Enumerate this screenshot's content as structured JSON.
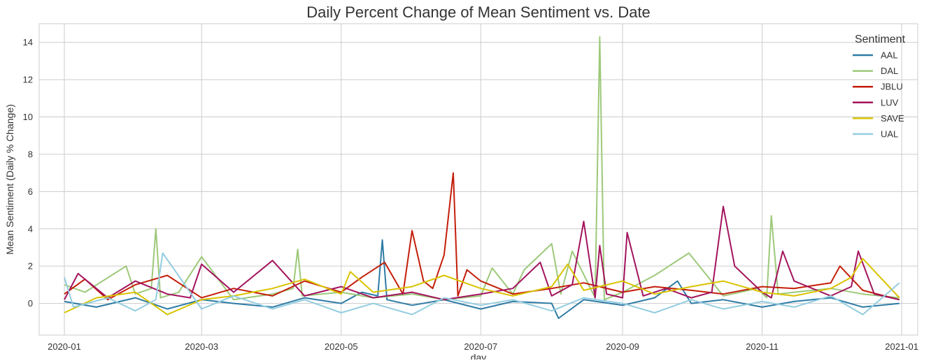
{
  "chart_data": {
    "type": "line",
    "title": "Daily Percent Change of Mean Sentiment vs. Date",
    "xlabel": "day",
    "ylabel": "Mean Sentiment (Daily % Change)",
    "x_range": [
      "2019-12-21",
      "2021-01-08"
    ],
    "ylim": [
      -1.7,
      15.0
    ],
    "x_ticks": [
      {
        "date": "2020-01-01",
        "label": "2020-01"
      },
      {
        "date": "2020-03-01",
        "label": "2020-03"
      },
      {
        "date": "2020-05-01",
        "label": "2020-05"
      },
      {
        "date": "2020-07-01",
        "label": "2020-07"
      },
      {
        "date": "2020-09-01",
        "label": "2020-09"
      },
      {
        "date": "2020-11-01",
        "label": "2020-11"
      },
      {
        "date": "2021-01-01",
        "label": "2021-01"
      }
    ],
    "y_ticks": [
      0,
      2,
      4,
      6,
      8,
      10,
      12,
      14
    ],
    "grid": true,
    "legend": {
      "title": "Sentiment",
      "placement": "top-right"
    },
    "series": [
      {
        "name": "AAL",
        "color": "#2e7ba5",
        "x": [
          "2020-01-01",
          "2020-01-15",
          "2020-02-01",
          "2020-02-15",
          "2020-03-01",
          "2020-03-15",
          "2020-04-01",
          "2020-04-15",
          "2020-05-01",
          "2020-05-10",
          "2020-05-17",
          "2020-05-19",
          "2020-05-21",
          "2020-06-01",
          "2020-06-15",
          "2020-07-01",
          "2020-07-15",
          "2020-08-01",
          "2020-08-04",
          "2020-08-15",
          "2020-09-01",
          "2020-09-15",
          "2020-09-25",
          "2020-10-01",
          "2020-10-15",
          "2020-11-01",
          "2020-11-15",
          "2020-12-01",
          "2020-12-15",
          "2020-12-31"
        ],
        "values": [
          0.1,
          -0.2,
          0.3,
          -0.3,
          0.2,
          0.0,
          -0.2,
          0.3,
          0.0,
          0.6,
          0.4,
          3.4,
          0.2,
          -0.1,
          0.2,
          -0.3,
          0.1,
          0.0,
          -0.8,
          0.2,
          -0.1,
          0.3,
          1.2,
          0.0,
          0.2,
          -0.2,
          0.1,
          0.3,
          -0.2,
          0.0
        ]
      },
      {
        "name": "DAL",
        "color": "#9dc97a",
        "x": [
          "2020-01-01",
          "2020-01-10",
          "2020-01-28",
          "2020-02-01",
          "2020-02-08",
          "2020-02-10",
          "2020-02-12",
          "2020-02-20",
          "2020-03-01",
          "2020-03-15",
          "2020-04-01",
          "2020-04-10",
          "2020-04-12",
          "2020-04-14",
          "2020-05-01",
          "2020-05-15",
          "2020-06-01",
          "2020-06-15",
          "2020-07-01",
          "2020-07-06",
          "2020-07-15",
          "2020-07-20",
          "2020-08-01",
          "2020-08-05",
          "2020-08-10",
          "2020-08-20",
          "2020-08-22",
          "2020-08-24",
          "2020-09-01",
          "2020-09-15",
          "2020-09-30",
          "2020-10-15",
          "2020-10-30",
          "2020-11-03",
          "2020-11-05",
          "2020-11-08",
          "2020-11-15",
          "2020-12-01",
          "2020-12-15",
          "2020-12-31"
        ],
        "values": [
          1.0,
          0.6,
          2.0,
          0.5,
          0.8,
          4.0,
          0.3,
          0.6,
          2.5,
          0.2,
          0.5,
          0.8,
          2.9,
          0.4,
          0.6,
          0.3,
          0.5,
          0.2,
          0.4,
          1.9,
          0.5,
          1.8,
          3.2,
          0.5,
          2.8,
          0.3,
          14.3,
          0.2,
          0.6,
          1.5,
          2.7,
          0.4,
          0.8,
          0.3,
          4.7,
          0.5,
          0.6,
          0.8,
          0.5,
          0.3
        ]
      },
      {
        "name": "JBLU",
        "color": "#c41e0a",
        "x": [
          "2020-01-01",
          "2020-01-10",
          "2020-01-20",
          "2020-02-01",
          "2020-02-15",
          "2020-03-01",
          "2020-03-15",
          "2020-04-01",
          "2020-04-15",
          "2020-05-01",
          "2020-05-10",
          "2020-05-20",
          "2020-05-28",
          "2020-06-01",
          "2020-06-06",
          "2020-06-10",
          "2020-06-15",
          "2020-06-19",
          "2020-06-21",
          "2020-06-25",
          "2020-07-01",
          "2020-07-15",
          "2020-08-01",
          "2020-08-15",
          "2020-09-01",
          "2020-09-15",
          "2020-10-01",
          "2020-10-15",
          "2020-11-01",
          "2020-11-15",
          "2020-12-01",
          "2020-12-05",
          "2020-12-15",
          "2020-12-31"
        ],
        "values": [
          0.5,
          1.3,
          0.2,
          1.0,
          1.5,
          0.3,
          0.8,
          0.4,
          1.2,
          0.6,
          1.4,
          2.2,
          0.5,
          3.9,
          1.2,
          0.8,
          2.6,
          7.0,
          0.4,
          1.8,
          1.2,
          0.5,
          0.8,
          1.1,
          0.6,
          0.9,
          0.7,
          0.5,
          0.9,
          0.8,
          1.1,
          2.0,
          0.7,
          0.2
        ]
      },
      {
        "name": "LUV",
        "color": "#a3135d",
        "x": [
          "2020-01-01",
          "2020-01-07",
          "2020-01-20",
          "2020-02-01",
          "2020-02-15",
          "2020-02-25",
          "2020-03-01",
          "2020-03-15",
          "2020-04-01",
          "2020-04-15",
          "2020-05-01",
          "2020-05-15",
          "2020-06-01",
          "2020-06-15",
          "2020-07-01",
          "2020-07-15",
          "2020-07-27",
          "2020-08-01",
          "2020-08-10",
          "2020-08-15",
          "2020-08-20",
          "2020-08-22",
          "2020-08-25",
          "2020-09-01",
          "2020-09-03",
          "2020-09-10",
          "2020-09-20",
          "2020-10-01",
          "2020-10-10",
          "2020-10-15",
          "2020-10-20",
          "2020-11-01",
          "2020-11-05",
          "2020-11-10",
          "2020-11-15",
          "2020-12-01",
          "2020-12-10",
          "2020-12-13",
          "2020-12-20",
          "2020-12-31"
        ],
        "values": [
          0.2,
          1.6,
          0.3,
          1.2,
          0.5,
          0.3,
          2.1,
          0.6,
          2.3,
          0.4,
          0.9,
          0.3,
          0.6,
          0.2,
          0.5,
          0.8,
          2.2,
          0.4,
          1.0,
          4.4,
          0.3,
          3.1,
          0.5,
          0.3,
          3.8,
          0.4,
          0.8,
          0.3,
          0.6,
          5.2,
          2.0,
          0.6,
          0.3,
          2.8,
          1.2,
          0.4,
          0.9,
          2.8,
          0.5,
          0.2
        ]
      },
      {
        "name": "SAVE",
        "color": "#d9c300",
        "x": [
          "2020-01-01",
          "2020-01-15",
          "2020-02-01",
          "2020-02-15",
          "2020-03-01",
          "2020-03-15",
          "2020-04-01",
          "2020-04-15",
          "2020-05-01",
          "2020-05-05",
          "2020-05-15",
          "2020-06-01",
          "2020-06-15",
          "2020-07-01",
          "2020-07-15",
          "2020-08-01",
          "2020-08-08",
          "2020-08-15",
          "2020-09-01",
          "2020-09-15",
          "2020-10-01",
          "2020-10-15",
          "2020-11-01",
          "2020-11-15",
          "2020-12-01",
          "2020-12-10",
          "2020-12-15",
          "2020-12-31"
        ],
        "values": [
          -0.5,
          0.3,
          0.6,
          -0.6,
          0.2,
          0.4,
          0.8,
          1.3,
          0.5,
          1.7,
          0.6,
          0.9,
          1.5,
          0.8,
          0.4,
          0.9,
          2.1,
          0.7,
          1.2,
          0.5,
          0.9,
          1.2,
          0.6,
          0.4,
          0.8,
          1.4,
          2.4,
          0.3
        ]
      },
      {
        "name": "UAL",
        "color": "#94cde0",
        "x": [
          "2020-01-01",
          "2020-01-05",
          "2020-01-20",
          "2020-02-01",
          "2020-02-10",
          "2020-02-13",
          "2020-02-17",
          "2020-03-01",
          "2020-03-15",
          "2020-04-01",
          "2020-04-15",
          "2020-05-01",
          "2020-05-15",
          "2020-06-01",
          "2020-06-15",
          "2020-07-01",
          "2020-07-15",
          "2020-08-01",
          "2020-08-15",
          "2020-09-01",
          "2020-09-15",
          "2020-10-01",
          "2020-10-15",
          "2020-11-01",
          "2020-11-15",
          "2020-12-01",
          "2020-12-15",
          "2020-12-31"
        ],
        "values": [
          1.4,
          -0.2,
          0.3,
          -0.4,
          0.2,
          2.7,
          2.0,
          -0.3,
          0.4,
          -0.3,
          0.2,
          -0.5,
          0.0,
          -0.6,
          0.3,
          -0.1,
          0.2,
          -0.4,
          0.3,
          0.0,
          -0.5,
          0.2,
          -0.3,
          0.1,
          -0.2,
          0.4,
          -0.6,
          1.1
        ]
      }
    ]
  }
}
